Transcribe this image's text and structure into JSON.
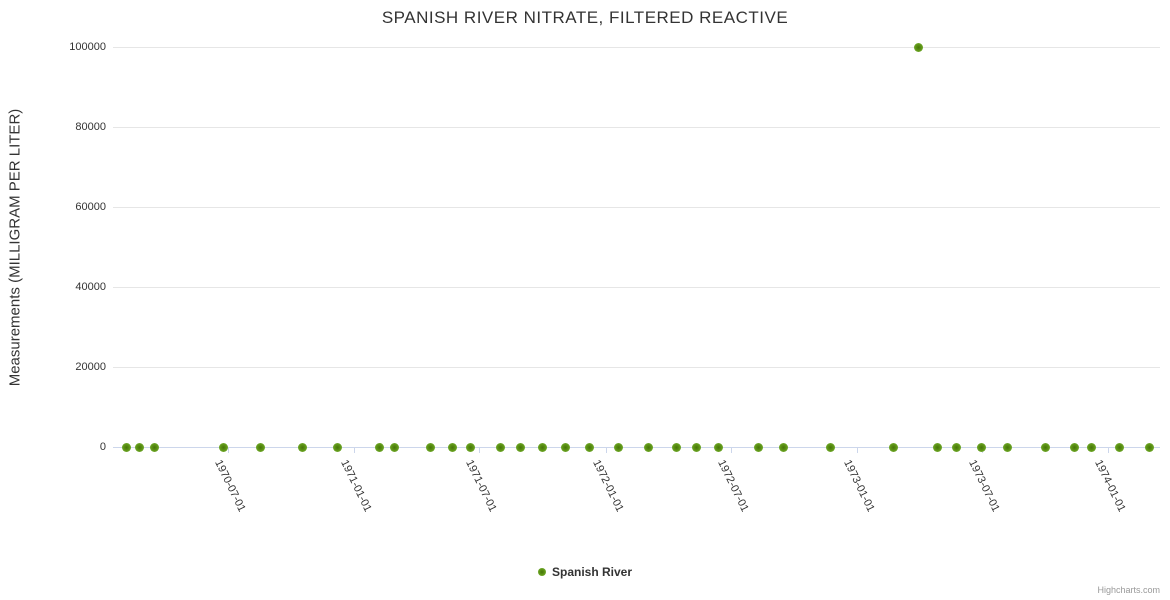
{
  "credits": {
    "label": "Highcharts.com"
  },
  "colors": {
    "grid_line": "#e6e6e6",
    "axis_line": "#ccd6eb",
    "text": "#333333",
    "credits_text": "#999999",
    "marker_center": "#46740a",
    "marker_mid": "#5d9414",
    "marker_edge": "#7ab33c"
  },
  "chart_data": {
    "type": "scatter",
    "title": "SPANISH RIVER NITRATE, FILTERED REACTIVE",
    "xlabel": "",
    "ylabel": "Measurements (MILLIGRAM PER LITER)",
    "ylim": [
      0,
      100000
    ],
    "yticks": [
      0,
      20000,
      40000,
      60000,
      80000,
      100000
    ],
    "xlim": [
      "1970-01-15",
      "1974-03-17"
    ],
    "xticks": [
      "1970-07-01",
      "1971-01-01",
      "1971-07-01",
      "1972-01-01",
      "1972-07-01",
      "1973-01-01",
      "1973-07-01",
      "1974-01-01"
    ],
    "grid": true,
    "legend_position": "bottom-center",
    "series": [
      {
        "name": "Spanish River",
        "color": "#5d9414",
        "points": [
          [
            "1970-02-03",
            0
          ],
          [
            "1970-02-23",
            0
          ],
          [
            "1970-03-16",
            0
          ],
          [
            "1970-06-24",
            0
          ],
          [
            "1970-08-18",
            0
          ],
          [
            "1970-10-18",
            0
          ],
          [
            "1970-12-08",
            0
          ],
          [
            "1971-02-06",
            0
          ],
          [
            "1971-02-28",
            0
          ],
          [
            "1971-04-21",
            0
          ],
          [
            "1971-05-23",
            0
          ],
          [
            "1971-06-19",
            0
          ],
          [
            "1971-08-01",
            0
          ],
          [
            "1971-08-30",
            0
          ],
          [
            "1971-10-01",
            0
          ],
          [
            "1971-11-04",
            0
          ],
          [
            "1971-12-09",
            0
          ],
          [
            "1972-01-20",
            0
          ],
          [
            "1972-03-03",
            0
          ],
          [
            "1972-04-13",
            0
          ],
          [
            "1972-05-12",
            0
          ],
          [
            "1972-06-13",
            0
          ],
          [
            "1972-08-11",
            0
          ],
          [
            "1972-09-15",
            0
          ],
          [
            "1972-11-23",
            0
          ],
          [
            "1973-02-22",
            0
          ],
          [
            "1973-03-31",
            100000
          ],
          [
            "1973-04-27",
            0
          ],
          [
            "1973-05-25",
            0
          ],
          [
            "1973-06-30",
            0
          ],
          [
            "1973-08-08",
            0
          ],
          [
            "1973-10-02",
            0
          ],
          [
            "1973-11-12",
            0
          ],
          [
            "1973-12-08",
            0
          ],
          [
            "1974-01-17",
            0
          ],
          [
            "1974-03-02",
            0
          ]
        ]
      }
    ]
  }
}
